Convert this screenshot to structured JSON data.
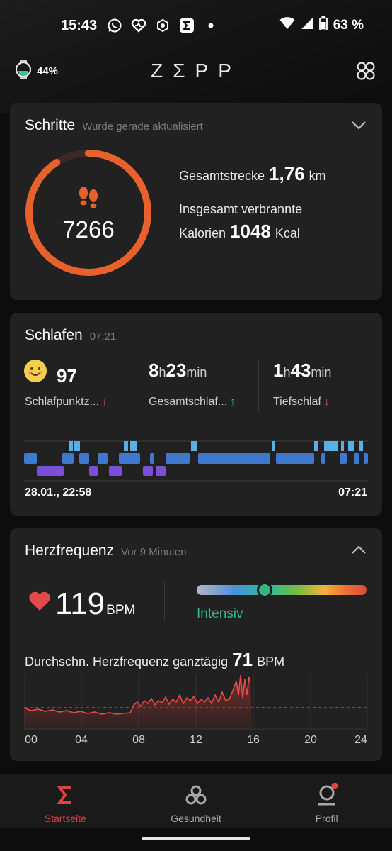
{
  "status_bar": {
    "time": "15:43",
    "battery": "63 %",
    "notification_icons": [
      "whatsapp-icon",
      "health-heart-icon",
      "app-hex-icon",
      "sigma-app-icon",
      "dot-icon"
    ]
  },
  "header": {
    "watch_battery": "44%",
    "brand": "ZΣPP"
  },
  "steps": {
    "title": "Schritte",
    "subtitle": "Wurde gerade aktualisiert",
    "count": "7266",
    "progress": 0.91,
    "distance_label": "Gesamtstrecke",
    "distance_value": "1,76",
    "distance_unit": "km",
    "calories_label_1": "Insgesamt verbrannte",
    "calories_label_2": "Kalorien",
    "calories_value": "1048",
    "calories_unit": "Kcal",
    "accent": "#e8612c"
  },
  "sleep": {
    "title": "Schlafen",
    "subtitle": "07:21",
    "score": "97",
    "score_label": "Schlafpunktz...",
    "total_h": "8",
    "total_m": "23",
    "total_label": "Gesamtschlaf...",
    "deep_h": "1",
    "deep_m": "43",
    "deep_label": "Tiefschlaf",
    "unit_h": "h",
    "unit_min": "min",
    "start_time": "28.01., 22:58",
    "end_time": "07:21"
  },
  "heart": {
    "title": "Herzfrequenz",
    "subtitle": "Vor 9 Minuten",
    "bpm": "119",
    "bpm_unit": "BPM",
    "zone_label": "Intensiv",
    "zone_position": 0.4,
    "avg_label": "Durchschn. Herzfrequenz ganztägig",
    "avg_value": "71",
    "avg_unit": "BPM",
    "ticks": [
      "00",
      "04",
      "08",
      "12",
      "16",
      "20",
      "24"
    ]
  },
  "nav": {
    "items": [
      {
        "label": "Startseite",
        "icon": "sigma-icon",
        "active": true
      },
      {
        "label": "Gesundheit",
        "icon": "health-icon",
        "active": false
      },
      {
        "label": "Profil",
        "icon": "profile-icon",
        "active": false
      }
    ]
  }
}
